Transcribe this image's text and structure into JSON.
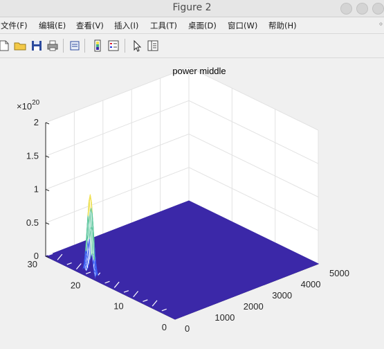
{
  "window": {
    "title": "Figure 2"
  },
  "menu": [
    "文件(F)",
    "编辑(E)",
    "查看(V)",
    "插入(I)",
    "工具(T)",
    "桌面(D)",
    "窗口(W)",
    "帮助(H)"
  ],
  "toolbar": {
    "icons": [
      "new-file-icon",
      "open-folder-icon",
      "save-icon",
      "print-icon",
      "print-preview-icon",
      "colorbar-icon",
      "legend-icon",
      "pointer-icon",
      "property-editor-icon"
    ]
  },
  "colors": {
    "surface": "#3b28a8",
    "peak_low": "#3a5cf0",
    "peak_high": "#f0e050"
  },
  "chart_data": {
    "type": "surface",
    "title": "power middle",
    "xlabel": "",
    "ylabel": "",
    "zlabel": "",
    "x_range": [
      0,
      5000
    ],
    "y_range": [
      0,
      30
    ],
    "z_range": [
      0,
      2e+20
    ],
    "z_exponent": "×10^20",
    "x_ticks": [
      "0",
      "1000",
      "2000",
      "3000",
      "4000",
      "5000"
    ],
    "y_ticks": [
      "0",
      "10",
      "20",
      "30"
    ],
    "z_ticks": [
      "0",
      "0.5",
      "1",
      "1.5",
      "2"
    ],
    "z_multiplier": "×10",
    "z_exponent_label": "20",
    "peak": {
      "x": 50,
      "y": 20,
      "z": 1.23e+20
    },
    "grid": true
  }
}
